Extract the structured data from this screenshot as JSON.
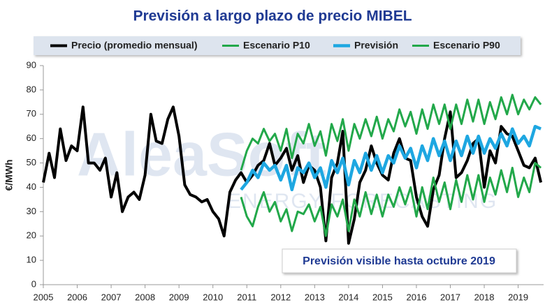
{
  "chart_data": {
    "type": "line",
    "title": "Previsión a largo plazo de precio MIBEL",
    "y_label": "€/MWh",
    "annotation": "Previsión visible hasta octubre 2019",
    "watermark": [
      "AleaSoft",
      "ENERGY FORECASTING"
    ],
    "xlim": [
      2005,
      2019.75
    ],
    "xticks": [
      2005,
      2006,
      2007,
      2008,
      2009,
      2010,
      2011,
      2012,
      2013,
      2014,
      2015,
      2016,
      2017,
      2018,
      2019
    ],
    "ylim": [
      0,
      90
    ],
    "yticks": [
      0,
      10,
      20,
      30,
      40,
      50,
      60,
      70,
      80,
      90
    ],
    "grid": false,
    "x": [
      2005,
      2005.17,
      2005.33,
      2005.5,
      2005.67,
      2005.83,
      2006,
      2006.17,
      2006.33,
      2006.5,
      2006.67,
      2006.83,
      2007,
      2007.17,
      2007.33,
      2007.5,
      2007.67,
      2007.83,
      2008,
      2008.17,
      2008.33,
      2008.5,
      2008.67,
      2008.83,
      2009,
      2009.17,
      2009.33,
      2009.5,
      2009.67,
      2009.83,
      2010,
      2010.17,
      2010.33,
      2010.5,
      2010.67,
      2010.83,
      2011,
      2011.17,
      2011.33,
      2011.5,
      2011.67,
      2011.83,
      2012,
      2012.17,
      2012.33,
      2012.5,
      2012.67,
      2012.83,
      2013,
      2013.17,
      2013.33,
      2013.5,
      2013.67,
      2013.83,
      2014,
      2014.17,
      2014.33,
      2014.5,
      2014.67,
      2014.83,
      2015,
      2015.17,
      2015.33,
      2015.5,
      2015.67,
      2015.83,
      2016,
      2016.17,
      2016.33,
      2016.5,
      2016.67,
      2016.83,
      2017,
      2017.17,
      2017.33,
      2017.5,
      2017.67,
      2017.83,
      2018,
      2018.17,
      2018.33,
      2018.5,
      2018.67,
      2018.83,
      2019,
      2019.17,
      2019.33,
      2019.5,
      2019.67
    ],
    "series": [
      {
        "name": "Precio (promedio mensual)",
        "color": "#000000",
        "width": 4,
        "values": [
          42,
          54,
          44,
          64,
          51,
          57,
          55,
          73,
          50,
          50,
          47,
          52,
          36,
          46,
          30,
          36,
          38,
          35,
          45,
          70,
          59,
          58,
          68,
          73,
          61,
          41,
          37,
          36,
          34,
          35,
          30,
          27,
          20,
          38,
          43,
          46,
          42,
          45,
          49,
          51,
          58,
          49,
          52,
          56,
          47,
          53,
          42,
          49,
          47,
          40,
          18,
          44,
          50,
          63,
          17,
          27,
          42,
          47,
          57,
          50,
          45,
          43,
          54,
          60,
          52,
          51,
          36,
          28,
          24,
          39,
          45,
          60,
          71,
          44,
          46,
          51,
          58,
          60,
          40,
          55,
          50,
          65,
          62,
          61,
          55,
          49,
          48,
          52,
          42
        ]
      },
      {
        "name": "Escenario P10",
        "color": "#22a84a",
        "width": 3,
        "values": [
          null,
          null,
          null,
          null,
          null,
          null,
          null,
          null,
          null,
          null,
          null,
          null,
          null,
          null,
          null,
          null,
          null,
          null,
          null,
          null,
          null,
          null,
          null,
          null,
          null,
          null,
          null,
          null,
          null,
          null,
          null,
          null,
          null,
          null,
          null,
          36,
          28,
          24,
          32,
          38,
          30,
          34,
          26,
          31,
          22,
          30,
          29,
          33,
          26,
          32,
          20,
          33,
          28,
          35,
          22,
          35,
          28,
          38,
          29,
          37,
          28,
          37,
          32,
          40,
          33,
          40,
          28,
          40,
          31,
          44,
          34,
          42,
          31,
          43,
          34,
          45,
          35,
          45,
          34,
          44,
          37,
          47,
          38,
          48,
          36,
          44,
          38,
          50,
          48
        ]
      },
      {
        "name": "Previsión",
        "color": "#1ea7e1",
        "width": 4.5,
        "values": [
          null,
          null,
          null,
          null,
          null,
          null,
          null,
          null,
          null,
          null,
          null,
          null,
          null,
          null,
          null,
          null,
          null,
          null,
          null,
          null,
          null,
          null,
          null,
          null,
          null,
          null,
          null,
          null,
          null,
          null,
          null,
          null,
          null,
          null,
          null,
          39,
          42,
          47,
          44,
          50,
          47,
          49,
          43,
          49,
          39,
          48,
          46,
          50,
          44,
          48,
          40,
          51,
          46,
          52,
          41,
          51,
          46,
          54,
          47,
          53,
          46,
          53,
          50,
          57,
          52,
          56,
          48,
          57,
          51,
          60,
          53,
          59,
          51,
          59,
          53,
          61,
          54,
          61,
          54,
          60,
          56,
          62,
          57,
          64,
          58,
          61,
          57,
          65,
          64
        ]
      },
      {
        "name": "Escenario P90",
        "color": "#22a84a",
        "width": 3,
        "values": [
          null,
          null,
          null,
          null,
          null,
          null,
          null,
          null,
          null,
          null,
          null,
          null,
          null,
          null,
          null,
          null,
          null,
          null,
          null,
          null,
          null,
          null,
          null,
          null,
          null,
          null,
          null,
          null,
          null,
          null,
          null,
          null,
          null,
          null,
          null,
          47,
          55,
          60,
          58,
          64,
          59,
          62,
          55,
          64,
          52,
          62,
          58,
          66,
          57,
          63,
          53,
          66,
          59,
          68,
          55,
          66,
          60,
          68,
          61,
          69,
          60,
          68,
          63,
          72,
          65,
          71,
          62,
          72,
          64,
          74,
          66,
          74,
          64,
          74,
          66,
          76,
          67,
          76,
          66,
          75,
          68,
          77,
          70,
          78,
          70,
          76,
          72,
          77,
          74
        ]
      }
    ]
  }
}
